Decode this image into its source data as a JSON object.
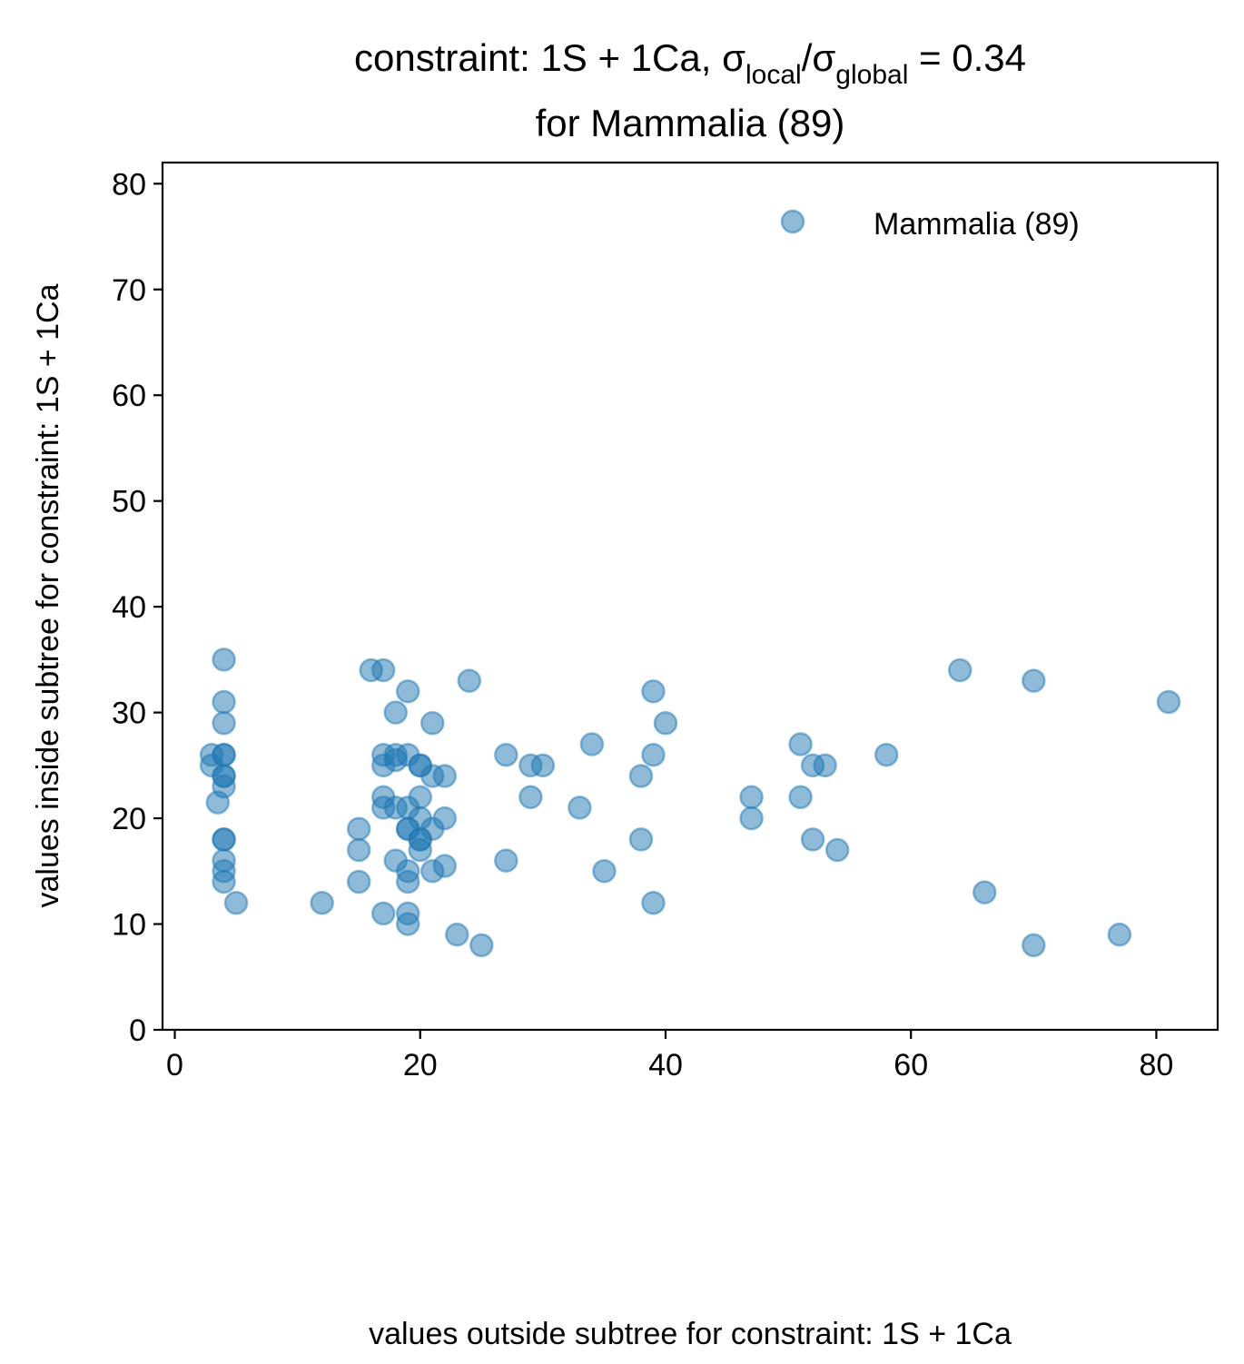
{
  "colors": {
    "series": "#1f77b4",
    "axis": "#000000",
    "background": "#ffffff"
  },
  "chart_data": {
    "type": "scatter",
    "title": {
      "line1": {
        "prefix": "constraint: 1S + 1Ca, σ",
        "sub1": "local",
        "mid": "/σ",
        "sub2": "global",
        "suffix": " =  0.34"
      },
      "line2": "for Mammalia (89)"
    },
    "xlabel": "values outside subtree for constraint: 1S + 1Ca",
    "ylabel": "values inside subtree for constraint: 1S + 1Ca",
    "xlim": [
      -1,
      85
    ],
    "ylim": [
      0,
      82
    ],
    "x_ticks": [
      0,
      20,
      40,
      60,
      80
    ],
    "y_ticks": [
      0,
      10,
      20,
      30,
      40,
      50,
      60,
      70,
      80
    ],
    "grid": false,
    "legend": {
      "position": "upper right",
      "entries": [
        "Mammalia (89)"
      ]
    },
    "series": [
      {
        "name": "Mammalia (89)",
        "marker": "circle",
        "alpha": 0.5,
        "points": [
          [
            4,
            35
          ],
          [
            4,
            31
          ],
          [
            4,
            29
          ],
          [
            3,
            26
          ],
          [
            4,
            26
          ],
          [
            4,
            26
          ],
          [
            3,
            25
          ],
          [
            4,
            24
          ],
          [
            4,
            24
          ],
          [
            4,
            23
          ],
          [
            3.5,
            21.5
          ],
          [
            4,
            18
          ],
          [
            4,
            18
          ],
          [
            4,
            16
          ],
          [
            4,
            15
          ],
          [
            4,
            14
          ],
          [
            5,
            12
          ],
          [
            12,
            12
          ],
          [
            15,
            19
          ],
          [
            15,
            17
          ],
          [
            15,
            14
          ],
          [
            16,
            34
          ],
          [
            17,
            34
          ],
          [
            17,
            26
          ],
          [
            17,
            25
          ],
          [
            17,
            22
          ],
          [
            17,
            21
          ],
          [
            17,
            11
          ],
          [
            18,
            30
          ],
          [
            18,
            26
          ],
          [
            18,
            25.5
          ],
          [
            18,
            21
          ],
          [
            18,
            16
          ],
          [
            19,
            32
          ],
          [
            19,
            26
          ],
          [
            19,
            21
          ],
          [
            19,
            19
          ],
          [
            19,
            19
          ],
          [
            19,
            15
          ],
          [
            19,
            14
          ],
          [
            19,
            11
          ],
          [
            19,
            10
          ],
          [
            20,
            25
          ],
          [
            20,
            25
          ],
          [
            20,
            22
          ],
          [
            20,
            20
          ],
          [
            20,
            18
          ],
          [
            20,
            18
          ],
          [
            20,
            17
          ],
          [
            21,
            29
          ],
          [
            21,
            24
          ],
          [
            21,
            19
          ],
          [
            21,
            15
          ],
          [
            22,
            24
          ],
          [
            22,
            20
          ],
          [
            22,
            15.5
          ],
          [
            23,
            9
          ],
          [
            24,
            33
          ],
          [
            25,
            8
          ],
          [
            27,
            26
          ],
          [
            27,
            16
          ],
          [
            29,
            25
          ],
          [
            29,
            22
          ],
          [
            30,
            25
          ],
          [
            33,
            21
          ],
          [
            34,
            27
          ],
          [
            35,
            15
          ],
          [
            38,
            24
          ],
          [
            38,
            18
          ],
          [
            39,
            32
          ],
          [
            39,
            26
          ],
          [
            39,
            12
          ],
          [
            40,
            29
          ],
          [
            47,
            22
          ],
          [
            47,
            20
          ],
          [
            51,
            27
          ],
          [
            51,
            22
          ],
          [
            52,
            25
          ],
          [
            52,
            18
          ],
          [
            53,
            25
          ],
          [
            54,
            17
          ],
          [
            58,
            26
          ],
          [
            64,
            34
          ],
          [
            66,
            13
          ],
          [
            70,
            33
          ],
          [
            70,
            8
          ],
          [
            77,
            9
          ],
          [
            81,
            31
          ]
        ]
      }
    ]
  }
}
